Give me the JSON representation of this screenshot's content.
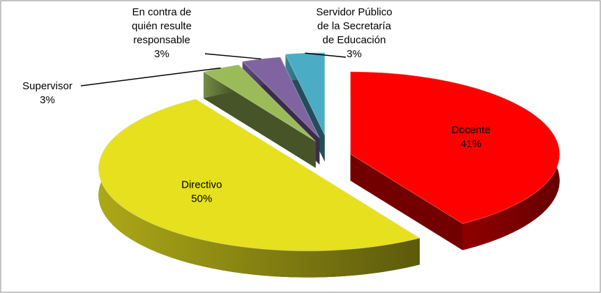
{
  "chart_data": {
    "type": "pie",
    "categories": [
      "Docente",
      "Directivo",
      "Supervisor",
      "En contra de\nquién resulte\nresponsable",
      "Servidor Público\nde la Secretaría\nde Educación"
    ],
    "values": [
      41,
      50,
      3,
      3,
      3
    ],
    "value_labels": [
      "41%",
      "50%",
      "3%",
      "3%",
      "3%"
    ],
    "colors": [
      "#ff0000",
      "#e6e01e",
      "#9bbb59",
      "#8064a2",
      "#4bacc6"
    ]
  }
}
